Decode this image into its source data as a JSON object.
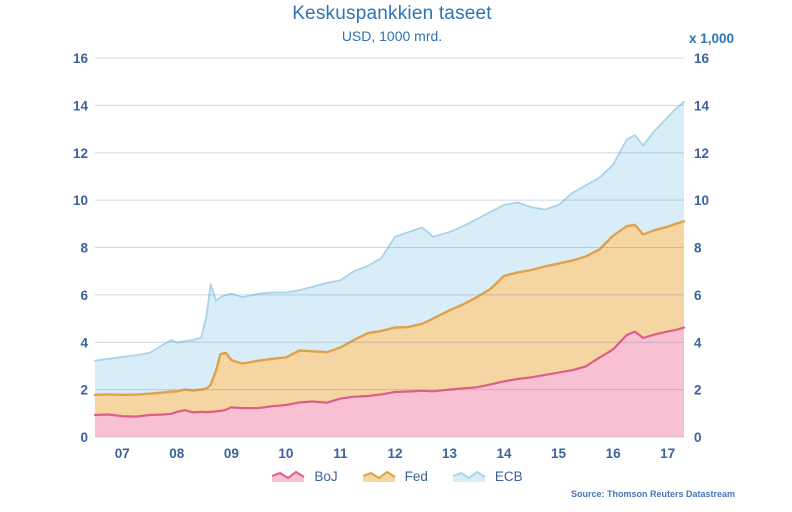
{
  "header": {
    "title": "Keskuspankkien taseet",
    "subtitle": "USD, 1000 mrd.",
    "right_axis_unit": "x 1,000"
  },
  "source_note": "Source: Thomson Reuters Datastream",
  "colors": {
    "title_text": "#2e74b5",
    "tick_text": "#3a639c",
    "legend_text": "#3a639c",
    "source_text": "#4477b8",
    "gridline": "rgba(105,135,170,0.32)",
    "background": "#ffffff"
  },
  "chart_data": {
    "type": "area",
    "stacked": true,
    "title": "Keskuspankkien taseet",
    "subtitle": "USD, 1000 mrd.",
    "right_axis_unit_label": "x 1,000",
    "xlabel": "",
    "ylabel": "",
    "ylim": [
      0,
      16
    ],
    "y_ticks": [
      0,
      2,
      4,
      6,
      8,
      10,
      12,
      14,
      16
    ],
    "y_axis_sides": [
      "left",
      "right"
    ],
    "xlim": [
      2006.5,
      2017.3
    ],
    "x_tick_years": [
      2007,
      2008,
      2009,
      2010,
      2011,
      2012,
      2013,
      2014,
      2015,
      2016,
      2017
    ],
    "x_tick_labels": [
      "07",
      "08",
      "09",
      "10",
      "11",
      "12",
      "13",
      "14",
      "15",
      "16",
      "17"
    ],
    "grid": true,
    "legend_position": "bottom",
    "x": [
      2006.5,
      2006.75,
      2007.0,
      2007.25,
      2007.5,
      2007.75,
      2007.9,
      2008.0,
      2008.15,
      2008.3,
      2008.45,
      2008.55,
      2008.62,
      2008.72,
      2008.8,
      2008.9,
      2009.0,
      2009.2,
      2009.5,
      2009.75,
      2010.0,
      2010.25,
      2010.5,
      2010.75,
      2011.0,
      2011.25,
      2011.5,
      2011.75,
      2012.0,
      2012.25,
      2012.5,
      2012.7,
      2013.0,
      2013.25,
      2013.5,
      2013.75,
      2014.0,
      2014.25,
      2014.5,
      2014.75,
      2015.0,
      2015.25,
      2015.5,
      2015.75,
      2016.0,
      2016.25,
      2016.4,
      2016.55,
      2016.75,
      2017.0,
      2017.15,
      2017.3
    ],
    "series": [
      {
        "name": "BoJ",
        "fill": "#f8c1d3",
        "stroke": "#dc6085",
        "values": [
          0.93,
          0.95,
          0.88,
          0.86,
          0.93,
          0.95,
          0.98,
          1.06,
          1.13,
          1.04,
          1.06,
          1.05,
          1.06,
          1.08,
          1.1,
          1.15,
          1.25,
          1.22,
          1.22,
          1.3,
          1.35,
          1.46,
          1.5,
          1.45,
          1.62,
          1.7,
          1.73,
          1.8,
          1.9,
          1.92,
          1.95,
          1.93,
          2.0,
          2.05,
          2.1,
          2.22,
          2.35,
          2.45,
          2.52,
          2.62,
          2.72,
          2.82,
          2.98,
          3.35,
          3.7,
          4.3,
          4.45,
          4.18,
          4.32,
          4.45,
          4.52,
          4.62
        ]
      },
      {
        "name": "Fed",
        "fill": "#f5d5a2",
        "stroke": "#e0a14b",
        "values": [
          0.85,
          0.85,
          0.9,
          0.93,
          0.9,
          0.93,
          0.94,
          0.86,
          0.87,
          0.92,
          0.94,
          1.0,
          1.14,
          1.72,
          2.4,
          2.4,
          2.0,
          1.88,
          2.0,
          2.0,
          2.01,
          2.19,
          2.12,
          2.13,
          2.16,
          2.4,
          2.65,
          2.68,
          2.72,
          2.73,
          2.83,
          3.07,
          3.35,
          3.55,
          3.8,
          4.03,
          4.45,
          4.5,
          4.53,
          4.58,
          4.6,
          4.63,
          4.64,
          4.57,
          4.8,
          4.6,
          4.51,
          4.37,
          4.4,
          4.43,
          4.48,
          4.48
        ]
      },
      {
        "name": "ECB",
        "fill": "#d8edf8",
        "stroke": "#a9d4e8",
        "values": [
          1.44,
          1.5,
          1.6,
          1.66,
          1.72,
          2.02,
          2.18,
          2.06,
          2.05,
          2.14,
          2.2,
          3.15,
          4.25,
          2.95,
          2.4,
          2.45,
          2.8,
          2.8,
          2.83,
          2.8,
          2.74,
          2.55,
          2.73,
          2.92,
          2.84,
          2.9,
          2.84,
          3.07,
          3.83,
          4.0,
          4.07,
          3.45,
          3.3,
          3.3,
          3.3,
          3.25,
          3.0,
          2.95,
          2.65,
          2.4,
          2.48,
          2.85,
          3.0,
          3.03,
          3.0,
          3.65,
          3.79,
          3.75,
          4.18,
          4.62,
          4.85,
          5.05
        ]
      }
    ]
  }
}
